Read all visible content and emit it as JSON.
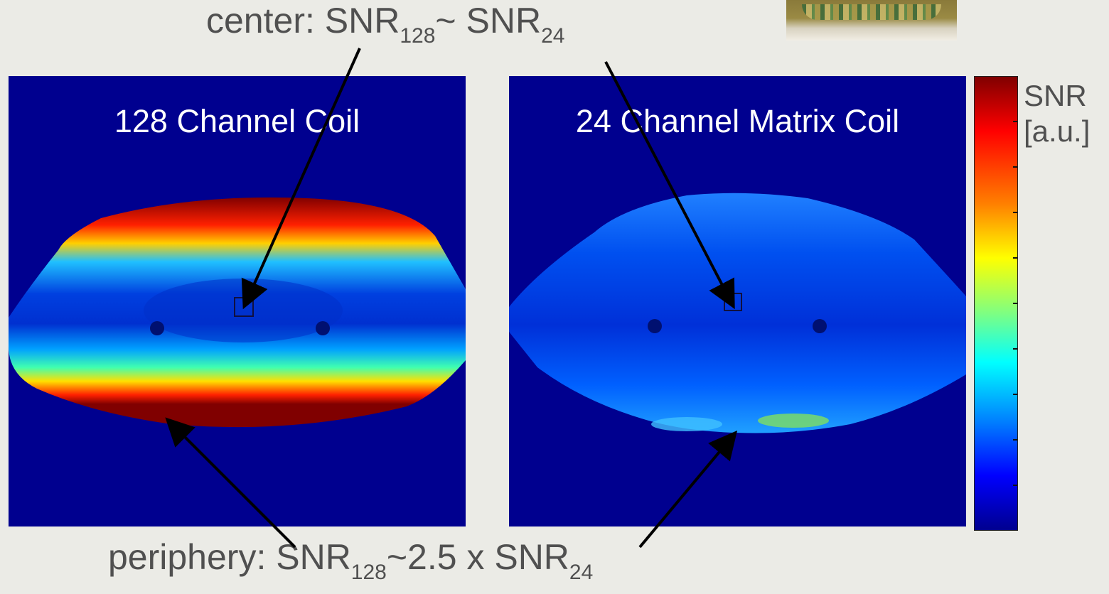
{
  "captions": {
    "center": {
      "prefix": "center: SNR",
      "sub1": "128",
      "mid": "~ SNR",
      "sub2": "24"
    },
    "periphery": {
      "prefix": "periphery: SNR",
      "sub1": "128",
      "mid": "~2.5 x SNR",
      "sub2": "24"
    }
  },
  "panels": [
    {
      "title": "128 Channel Coil"
    },
    {
      "title": "24 Channel Matrix Coil"
    }
  ],
  "colorbar": {
    "label_line1": "SNR",
    "label_line2": "[a.u.]",
    "colormap": "jet"
  },
  "colors": {
    "background": "#ebebe6",
    "text": "#505050",
    "map_low": "#00008f",
    "map_high": "#800000"
  }
}
